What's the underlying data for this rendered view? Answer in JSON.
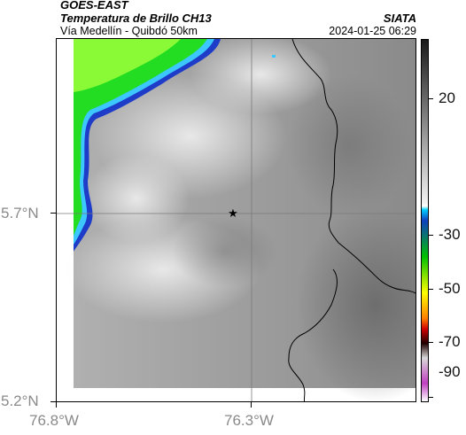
{
  "header": {
    "satellite": "GOES-EAST",
    "product": "Temperatura de Brillo CH13",
    "route": "Vía Medellín - Quibdó 50km",
    "agency": "SIATA",
    "timestamp": "2024-01-25 06:29"
  },
  "axes": {
    "y_labels": [
      "5.7°N",
      "5.2°N"
    ],
    "x_labels": [
      "76.8°W",
      "76.3°W"
    ]
  },
  "colorbar": {
    "tick_labels": [
      "20",
      "-30",
      "-50",
      "-70",
      "-90"
    ],
    "colors": {
      "warm_top": "#1a1a1a",
      "warm_bottom": "#f2f2f2",
      "cyan": "#00d0ff",
      "blue": "#1040c0",
      "green": "#00c000",
      "yellow": "#ffff00",
      "orange": "#ff8000",
      "red": "#d00000",
      "dark": "#200000",
      "magenta": "#c040c0"
    }
  },
  "map": {
    "marker": "star-icon",
    "colors": {
      "land": "#8c8c8c",
      "cloud_light": "#e6e6e6",
      "cloud_edge_blue": "#1e3cc8",
      "cloud_edge_cyan": "#3cc8ff",
      "cloud_green": "#22dd22",
      "cloud_lime": "#9cff3a",
      "border": "#000000"
    }
  }
}
